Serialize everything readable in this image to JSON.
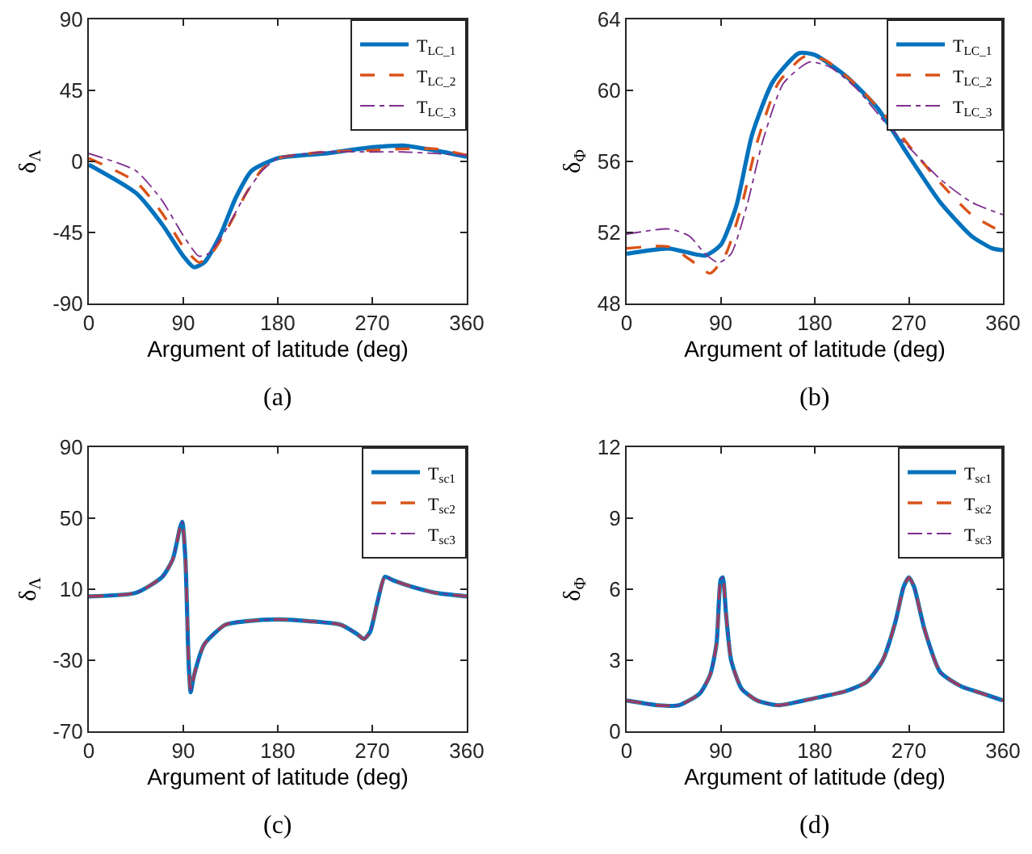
{
  "chart_data": [
    {
      "type": "line",
      "xlabel": "Argument of latitude (deg)",
      "ylabel": "δ$_{Λ}$",
      "annotations": [
        "(a)"
      ],
      "xlim": [
        0,
        360
      ],
      "xticks": [
        0,
        90,
        180,
        270,
        360
      ],
      "ylim": [
        -90,
        90
      ],
      "yticks": [
        -90,
        -45,
        0,
        45,
        90
      ],
      "grid": false,
      "legend": "top right",
      "marker": "none",
      "series": [
        {
          "name": "T$_{LC_1}$",
          "color": "#0072bd",
          "line_style": "solid",
          "x": [
            0,
            45,
            70,
            90,
            100,
            110,
            125,
            140,
            155,
            180,
            225,
            270,
            300,
            330,
            360
          ],
          "values": [
            -2,
            -20,
            -40,
            -60,
            -67,
            -64,
            -47,
            -23,
            -6,
            2,
            5,
            9,
            10,
            7,
            3
          ]
        },
        {
          "name": "T$_{LC_2}$",
          "color": "#d95319",
          "line_style": "dashed",
          "x": [
            0,
            45,
            70,
            90,
            105,
            115,
            130,
            150,
            165,
            180,
            225,
            270,
            300,
            330,
            360
          ],
          "values": [
            2,
            -13,
            -33,
            -54,
            -64,
            -60,
            -45,
            -20,
            -5,
            2,
            6,
            7,
            8,
            8,
            4
          ]
        },
        {
          "name": "T$_{LC_3}$",
          "color": "#7e2f8e",
          "line_style": "dashdot",
          "x": [
            0,
            45,
            70,
            90,
            105,
            115,
            130,
            150,
            165,
            180,
            225,
            270,
            300,
            330,
            360
          ],
          "values": [
            5,
            -6,
            -25,
            -47,
            -60,
            -58,
            -44,
            -20,
            -6,
            2,
            6,
            6,
            6,
            5,
            4
          ]
        }
      ]
    },
    {
      "type": "line",
      "xlabel": "Argument of latitude (deg)",
      "ylabel": "δ$_{Φ}$",
      "annotations": [
        "(b)"
      ],
      "xlim": [
        0,
        360
      ],
      "xticks": [
        0,
        90,
        180,
        270,
        360
      ],
      "ylim": [
        48,
        64
      ],
      "yticks": [
        48,
        52,
        56,
        60,
        64
      ],
      "grid": false,
      "legend": "top right",
      "marker": "none",
      "series": [
        {
          "name": "T$_{LC_1}$",
          "color": "#0072bd",
          "line_style": "solid",
          "x": [
            0,
            40,
            75,
            90,
            105,
            120,
            140,
            165,
            180,
            210,
            240,
            270,
            300,
            330,
            350,
            360
          ],
          "values": [
            50.8,
            51.1,
            50.7,
            51.3,
            53.5,
            57.5,
            60.5,
            62.1,
            62,
            60.8,
            59,
            56.3,
            53.7,
            51.8,
            51.1,
            51
          ]
        },
        {
          "name": "T$_{LC_2}$",
          "color": "#d95319",
          "line_style": "dashed",
          "x": [
            0,
            40,
            60,
            80,
            95,
            110,
            125,
            145,
            170,
            190,
            220,
            250,
            270,
            300,
            330,
            360
          ],
          "values": [
            51.1,
            51.2,
            50.5,
            49.7,
            50.8,
            53.5,
            57.1,
            60.4,
            61.9,
            61.7,
            60.3,
            58.4,
            56.9,
            54.8,
            53,
            52
          ]
        },
        {
          "name": "T$_{LC_3}$",
          "color": "#7e2f8e",
          "line_style": "dashdot",
          "x": [
            0,
            40,
            60,
            75,
            88,
            100,
            115,
            130,
            150,
            175,
            195,
            220,
            250,
            270,
            300,
            330,
            360
          ],
          "values": [
            51.9,
            52.2,
            51.8,
            50.8,
            50.3,
            50.8,
            53.5,
            57.1,
            60.4,
            61.6,
            61.3,
            60.1,
            58,
            56.8,
            55,
            53.7,
            53
          ]
        }
      ]
    },
    {
      "type": "line",
      "xlabel": "Argument of latitude (deg)",
      "ylabel": "δ$_{Λ}$",
      "annotations": [
        "(c)"
      ],
      "xlim": [
        0,
        360
      ],
      "xticks": [
        0,
        90,
        180,
        270,
        360
      ],
      "ylim": [
        -70,
        90
      ],
      "yticks": [
        -70,
        -30,
        10,
        50,
        90
      ],
      "grid": false,
      "legend": "top right",
      "marker": "none",
      "x": [
        0,
        45,
        70,
        80,
        87,
        89,
        92,
        95,
        97,
        100,
        110,
        130,
        150,
        180,
        210,
        240,
        255,
        262,
        268,
        275,
        282,
        290,
        310,
        330,
        360
      ],
      "series": [
        {
          "name": "T$_{sc1}$",
          "color": "#0072bd",
          "line_style": "solid",
          "values": [
            6,
            8,
            17,
            27,
            45,
            48,
            27,
            -30,
            -48,
            -39,
            -21,
            -10,
            -8,
            -7,
            -8,
            -10,
            -15,
            -18,
            -14,
            3,
            17,
            15,
            11,
            8,
            6
          ]
        },
        {
          "name": "T$_{sc2}$",
          "color": "#d95319",
          "line_style": "dashed",
          "values": [
            6,
            8,
            17,
            27,
            45,
            48,
            27,
            -30,
            -48,
            -39,
            -21,
            -10,
            -8,
            -7,
            -8,
            -10,
            -15,
            -18,
            -14,
            3,
            17,
            15,
            11,
            8,
            6
          ]
        },
        {
          "name": "T$_{sc3}$",
          "color": "#7e2f8e",
          "line_style": "dashdot",
          "values": [
            6,
            8,
            17,
            27,
            45,
            48,
            27,
            -30,
            -48,
            -39,
            -21,
            -10,
            -8,
            -7,
            -8,
            -10,
            -15,
            -18,
            -14,
            3,
            17,
            15,
            11,
            8,
            6
          ]
        }
      ]
    },
    {
      "type": "line",
      "xlabel": "Argument of latitude (deg)",
      "ylabel": "δ$_{Φ}$",
      "annotations": [
        "(d)"
      ],
      "xlim": [
        0,
        360
      ],
      "xticks": [
        0,
        90,
        180,
        270,
        360
      ],
      "ylim": [
        0,
        12
      ],
      "yticks": [
        0,
        3,
        6,
        9,
        12
      ],
      "grid": false,
      "legend": "top right",
      "marker": "none",
      "x": [
        0,
        30,
        50,
        70,
        80,
        86,
        90,
        92,
        95,
        100,
        110,
        125,
        145,
        180,
        210,
        230,
        245,
        257,
        265,
        270,
        275,
        285,
        300,
        320,
        340,
        360
      ],
      "series": [
        {
          "name": "T$_{sc1}$",
          "color": "#0072bd",
          "line_style": "solid",
          "values": [
            1.3,
            1.1,
            1.1,
            1.6,
            2.4,
            3.7,
            6.4,
            6.5,
            5,
            3,
            1.8,
            1.3,
            1.1,
            1.4,
            1.7,
            2.1,
            3,
            4.6,
            6.1,
            6.5,
            6.1,
            4.3,
            2.5,
            1.9,
            1.6,
            1.3
          ]
        },
        {
          "name": "T$_{sc2}$",
          "color": "#d95319",
          "line_style": "dashed",
          "values": [
            1.3,
            1.1,
            1.1,
            1.6,
            2.4,
            3.7,
            6.4,
            6.5,
            5,
            3,
            1.8,
            1.3,
            1.1,
            1.4,
            1.7,
            2.1,
            3,
            4.6,
            6.1,
            6.5,
            6.1,
            4.3,
            2.5,
            1.9,
            1.6,
            1.3
          ]
        },
        {
          "name": "T$_{sc3}$",
          "color": "#7e2f8e",
          "line_style": "dashdot",
          "values": [
            1.3,
            1.1,
            1.1,
            1.6,
            2.4,
            3.7,
            6.4,
            6.5,
            5,
            3,
            1.8,
            1.3,
            1.1,
            1.4,
            1.7,
            2.1,
            3,
            4.6,
            6.1,
            6.5,
            6.1,
            4.3,
            2.5,
            1.9,
            1.6,
            1.3
          ]
        }
      ]
    }
  ]
}
